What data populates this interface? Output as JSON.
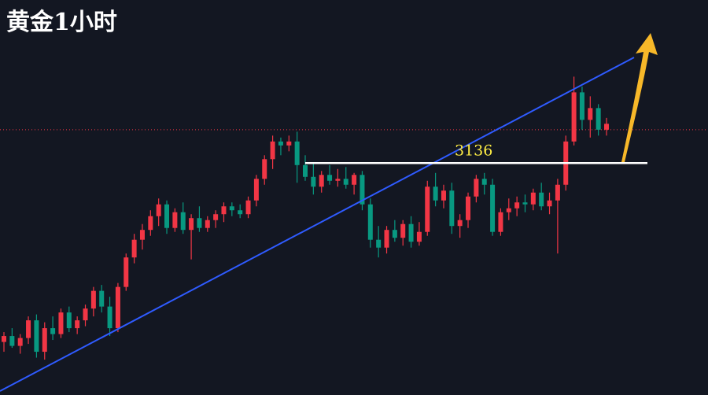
{
  "chart_data": {
    "type": "candlestick",
    "title": "黄金1小时",
    "ylim": [
      3018,
      3219
    ],
    "level": 3136,
    "price_line": 3153,
    "up_color": "#f23645",
    "down_color": "#089981",
    "open": [
      3045,
      3048,
      3043,
      3047,
      3056,
      3040,
      3052,
      3049,
      3060,
      3052,
      3056,
      3062,
      3071,
      3063,
      3052,
      3073,
      3088,
      3097,
      3102,
      3109,
      3115,
      3103,
      3111,
      3102,
      3108,
      3103,
      3107,
      3110,
      3114,
      3112,
      3110,
      3117,
      3128,
      3138,
      3147,
      3145,
      3147,
      3135,
      3129,
      3124,
      3130,
      3127,
      3128,
      3125,
      3130,
      3115,
      3097,
      3093,
      3102,
      3098,
      3105,
      3096,
      3101,
      3124,
      3117,
      3122,
      3104,
      3107,
      3119,
      3128,
      3125,
      3101,
      3111,
      3113,
      3116,
      3115,
      3121,
      3114,
      3117,
      3125,
      3147,
      3172,
      3158,
      3164,
      3153
    ],
    "high": [
      3050,
      3052,
      3049,
      3058,
      3059,
      3055,
      3058,
      3062,
      3063,
      3058,
      3064,
      3073,
      3074,
      3068,
      3075,
      3090,
      3100,
      3105,
      3112,
      3118,
      3117,
      3113,
      3116,
      3110,
      3114,
      3109,
      3112,
      3116,
      3116,
      3115,
      3119,
      3130,
      3140,
      3150,
      3149,
      3150,
      3152,
      3140,
      3136,
      3132,
      3135,
      3133,
      3134,
      3131,
      3132,
      3118,
      3104,
      3104,
      3107,
      3107,
      3109,
      3106,
      3127,
      3131,
      3125,
      3126,
      3110,
      3121,
      3130,
      3131,
      3128,
      3113,
      3118,
      3119,
      3120,
      3123,
      3126,
      3121,
      3128,
      3150,
      3180,
      3175,
      3170,
      3166,
      3159
    ],
    "low": [
      3040,
      3042,
      3039,
      3044,
      3037,
      3036,
      3046,
      3047,
      3050,
      3049,
      3053,
      3058,
      3060,
      3048,
      3050,
      3071,
      3085,
      3092,
      3099,
      3104,
      3100,
      3101,
      3100,
      3087,
      3101,
      3101,
      3103,
      3106,
      3109,
      3108,
      3108,
      3114,
      3125,
      3133,
      3140,
      3142,
      3126,
      3127,
      3120,
      3121,
      3125,
      3124,
      3123,
      3120,
      3112,
      3093,
      3088,
      3090,
      3096,
      3094,
      3093,
      3094,
      3099,
      3114,
      3113,
      3100,
      3098,
      3103,
      3116,
      3120,
      3099,
      3099,
      3107,
      3109,
      3111,
      3112,
      3112,
      3110,
      3090,
      3122,
      3145,
      3153,
      3149,
      3150,
      3150
    ],
    "close": [
      3048,
      3043,
      3047,
      3056,
      3040,
      3052,
      3049,
      3060,
      3052,
      3056,
      3062,
      3071,
      3063,
      3052,
      3073,
      3088,
      3097,
      3102,
      3109,
      3115,
      3103,
      3111,
      3102,
      3108,
      3103,
      3107,
      3110,
      3114,
      3112,
      3110,
      3117,
      3128,
      3138,
      3147,
      3145,
      3147,
      3135,
      3129,
      3124,
      3130,
      3127,
      3128,
      3125,
      3130,
      3115,
      3097,
      3093,
      3102,
      3098,
      3105,
      3096,
      3101,
      3124,
      3117,
      3122,
      3104,
      3107,
      3119,
      3128,
      3125,
      3101,
      3111,
      3113,
      3116,
      3115,
      3121,
      3114,
      3117,
      3125,
      3147,
      3172,
      3158,
      3164,
      3153,
      3156
    ]
  }
}
